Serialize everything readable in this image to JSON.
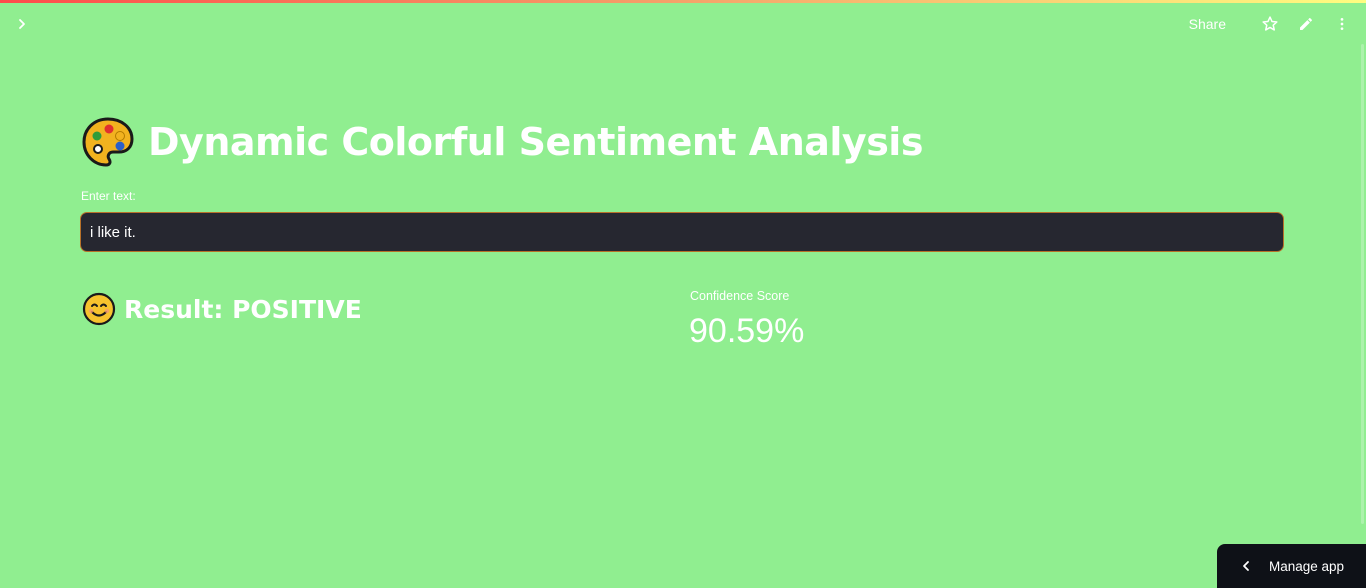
{
  "header": {
    "share_label": "Share",
    "icons": [
      "chevron-right-icon",
      "star-icon",
      "edit-pencil-icon",
      "more-vertical-icon"
    ]
  },
  "main": {
    "title": "Dynamic Colorful Sentiment Analysis",
    "title_emoji": "palette-icon",
    "input": {
      "label": "Enter text:",
      "value": "i like it."
    },
    "result": {
      "emoji": "smiling-face-icon",
      "text": "Result: POSITIVE"
    },
    "metric": {
      "label": "Confidence Score",
      "value": "90.59%"
    }
  },
  "footer": {
    "manage_app_label": "Manage app"
  },
  "colors": {
    "background": "#90ee90",
    "input_bg": "#262730",
    "input_border": "#b8702a",
    "manage_bg": "#0e1117"
  }
}
